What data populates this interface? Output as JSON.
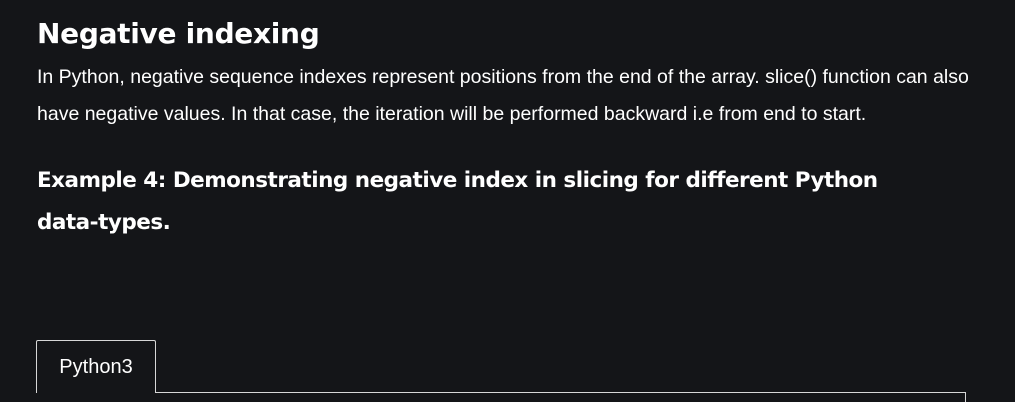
{
  "article": {
    "heading": "Negative indexing",
    "paragraph": "In Python, negative sequence indexes represent positions from the end of the array. slice() function can also have negative values. In that case, the iteration will be performed backward i.e from end to start.",
    "example_heading": "Example 4: Demonstrating negative index in slicing for different Python data-types."
  },
  "code_block": {
    "tabs": [
      {
        "label": "Python3",
        "selected": true
      }
    ]
  },
  "colors": {
    "background": "#141518",
    "text": "#ffffff",
    "tab_border": "#d7d7d7"
  }
}
